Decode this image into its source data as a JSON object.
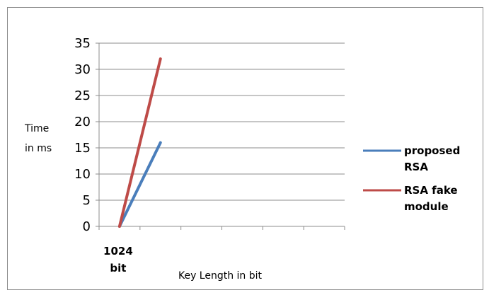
{
  "chart_data": {
    "type": "line",
    "title": "",
    "xlabel": "Key Length in bit",
    "ylabel_lines": [
      "Time",
      "in ms"
    ],
    "categories": [
      "1024\nbit",
      "",
      "",
      "",
      "",
      ""
    ],
    "ylim": [
      0,
      35
    ],
    "y_ticks": [
      0,
      5,
      10,
      15,
      20,
      25,
      30,
      35
    ],
    "grid": "horizontal",
    "legend_position": "right",
    "series": [
      {
        "name": "proposed RSA",
        "legend_lines": [
          "proposed",
          "RSA"
        ],
        "color": "#4a7ebb",
        "x": [
          1,
          2
        ],
        "values": [
          0,
          16
        ]
      },
      {
        "name": "RSA fake module",
        "legend_lines": [
          "RSA fake",
          "module"
        ],
        "color": "#be4b48",
        "x": [
          1,
          2
        ],
        "values": [
          0,
          32
        ]
      }
    ]
  }
}
